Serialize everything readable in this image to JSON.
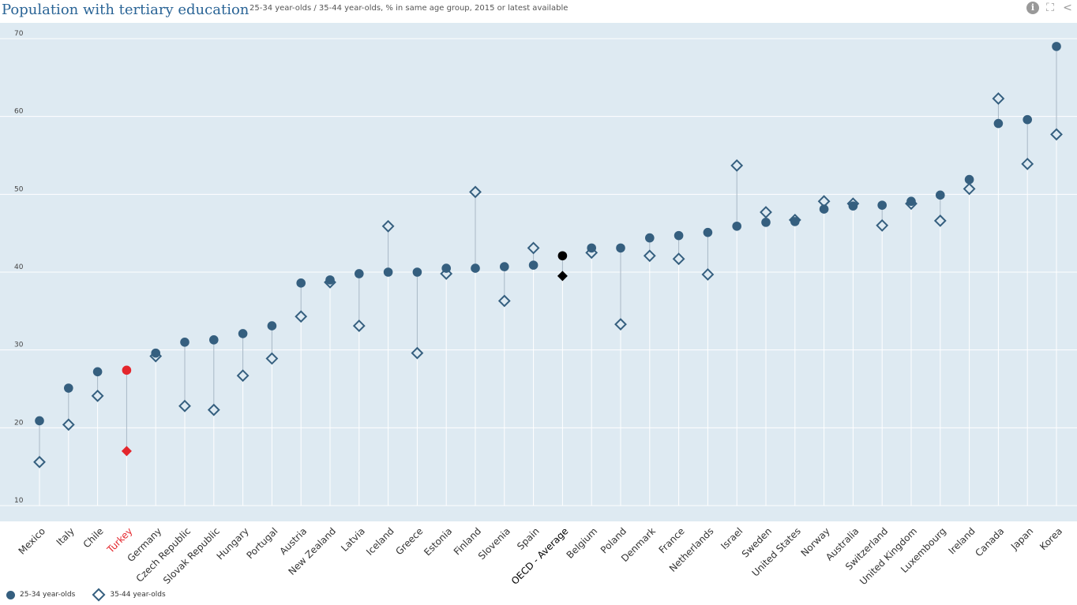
{
  "header": {
    "title": "Population with tertiary education",
    "subtitle": "25-34 year-olds / 35-44 year-olds, % in same age group, 2015 or latest available",
    "tools": [
      {
        "icon": "info-icon",
        "glyph": "i"
      },
      {
        "icon": "fullscreen-icon",
        "glyph": "⛶"
      },
      {
        "icon": "share-icon",
        "glyph": "<"
      }
    ]
  },
  "colors": {
    "plot_bg": "#deeaf2",
    "series": "#355f7f",
    "highlight": "#e4262c",
    "average": "#000000",
    "connector": "#a9b8c6",
    "grid": "#ffffff"
  },
  "legend": {
    "items": [
      {
        "label": "25-34 year-olds",
        "marker": "circle"
      },
      {
        "label": "35-44 year-olds",
        "marker": "diamond-open"
      }
    ]
  },
  "chart_data": {
    "type": "scatter",
    "title": "Population with tertiary education",
    "subtitle": "25-34 year-olds / 35-44 year-olds, % in same age group, 2015 or latest available",
    "xlabel": "",
    "ylabel": "",
    "ylim": [
      10,
      70
    ],
    "yticks": [
      10,
      20,
      30,
      40,
      50,
      60,
      70
    ],
    "grid": true,
    "legend_position": "bottom-left",
    "highlighted": "Turkey",
    "average_category": "OECD - Average",
    "categories": [
      "Mexico",
      "Italy",
      "Chile",
      "Turkey",
      "Germany",
      "Czech Republic",
      "Slovak Republic",
      "Hungary",
      "Portugal",
      "Austria",
      "New Zealand",
      "Latvia",
      "Iceland",
      "Greece",
      "Estonia",
      "Finland",
      "Slovenia",
      "Spain",
      "OECD - Average",
      "Belgium",
      "Poland",
      "Denmark",
      "France",
      "Netherlands",
      "Israel",
      "Sweden",
      "United States",
      "Norway",
      "Australia",
      "Switzerland",
      "United Kingdom",
      "Luxembourg",
      "Ireland",
      "Canada",
      "Japan",
      "Korea"
    ],
    "series": [
      {
        "name": "25-34 year-olds",
        "marker": "circle",
        "values": [
          20.9,
          25.1,
          27.2,
          27.4,
          29.6,
          31.0,
          31.3,
          32.1,
          33.1,
          38.6,
          39.0,
          39.8,
          40.0,
          40.0,
          40.5,
          40.5,
          40.7,
          40.9,
          42.1,
          43.1,
          43.1,
          44.4,
          44.7,
          45.1,
          45.9,
          46.4,
          46.5,
          48.1,
          48.5,
          48.6,
          49.1,
          49.9,
          51.9,
          59.1,
          59.6,
          69.0
        ]
      },
      {
        "name": "35-44 year-olds",
        "marker": "diamond",
        "values": [
          15.6,
          20.4,
          24.1,
          17.0,
          29.2,
          22.8,
          22.3,
          26.7,
          28.9,
          34.3,
          38.7,
          33.1,
          45.9,
          29.6,
          39.8,
          50.3,
          36.3,
          43.1,
          39.5,
          42.5,
          33.3,
          42.1,
          41.7,
          39.7,
          53.7,
          47.7,
          46.7,
          49.1,
          48.8,
          46.0,
          48.8,
          46.6,
          50.7,
          62.3,
          53.9,
          57.7
        ]
      }
    ]
  }
}
